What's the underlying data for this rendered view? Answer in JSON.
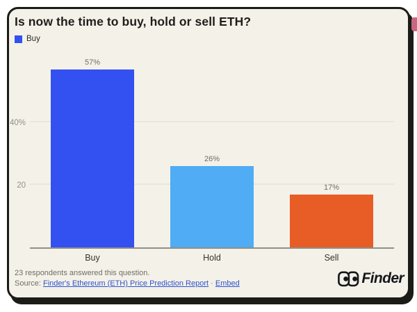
{
  "card": {
    "title": "Is now the time to buy, hold or sell ETH?",
    "legend": {
      "items": [
        {
          "label": "Buy",
          "color": "#3351F0"
        }
      ]
    },
    "footer": {
      "respondents": "23 respondents answered this question.",
      "source_prefix": "Source:",
      "source_link": "Finder's Ethereum (ETH) Price Prediction Report",
      "separator": "·",
      "embed_link": "Embed"
    },
    "brand": {
      "name": "Finder"
    }
  },
  "colors": {
    "card_background": "#F4F1E8",
    "card_border": "#1B1B18",
    "link": "#2E52CE",
    "accent_pill": "#C96880",
    "value_label": "#6E6E66",
    "axis_label": "#33332E"
  },
  "chart_data": {
    "type": "bar",
    "title": "Is now the time to buy, hold or sell ETH?",
    "categories": [
      "Buy",
      "Hold",
      "Sell"
    ],
    "values": [
      57,
      26,
      17
    ],
    "value_labels": [
      "57%",
      "26%",
      "17%"
    ],
    "bar_colors": [
      "#3351F0",
      "#4FACF5",
      "#E85C26"
    ],
    "yticks": [
      {
        "value": 40,
        "label": "40%"
      },
      {
        "value": 20,
        "label": "20"
      }
    ],
    "ylim": [
      0,
      62.6
    ],
    "grid": true,
    "legend": [
      "Buy"
    ],
    "legend_position": "top-left",
    "xlabel": "",
    "ylabel": ""
  }
}
